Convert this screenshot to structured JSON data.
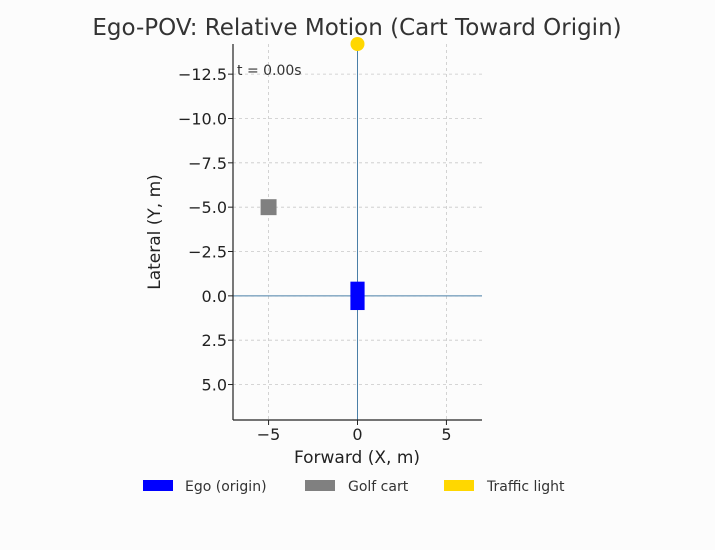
{
  "chart_data": {
    "type": "scatter",
    "title": "Ego-POV: Relative Motion (Cart Toward Origin)",
    "xlabel": "Forward (X, m)",
    "ylabel": "Lateral (Y, m)",
    "xlim": [
      -7,
      7
    ],
    "ylim": [
      7,
      -14.2
    ],
    "y_axis_inverted": true,
    "grid": true,
    "grid_style": "dashed",
    "x_ticks": [
      -5,
      0,
      5
    ],
    "x_tick_labels": [
      "−5",
      "0",
      "5"
    ],
    "y_ticks": [
      -12.5,
      -10.0,
      -7.5,
      -5.0,
      -2.5,
      0.0,
      2.5,
      5.0
    ],
    "y_tick_labels": [
      "−12.5",
      "−10.0",
      "−7.5",
      "−5.0",
      "−2.5",
      "0.0",
      "2.5",
      "5.0"
    ],
    "crosshair": {
      "x": 0,
      "y": 0,
      "color": "#4a7fa7"
    },
    "annotation": "t = 0.00s",
    "legend_placement": "bottom-center",
    "series": [
      {
        "name": "Ego (origin)",
        "color": "#0000ff",
        "shape": "rect",
        "x": 0,
        "y": 0,
        "width": 0.8,
        "length": 1.6
      },
      {
        "name": "Golf cart",
        "color": "#808080",
        "shape": "rect",
        "x": -5,
        "y": -5,
        "width": 0.9,
        "length": 0.9
      },
      {
        "name": "Traffic light",
        "color": "#ffd700",
        "shape": "circle",
        "x": 0,
        "y": -14.2
      }
    ]
  }
}
